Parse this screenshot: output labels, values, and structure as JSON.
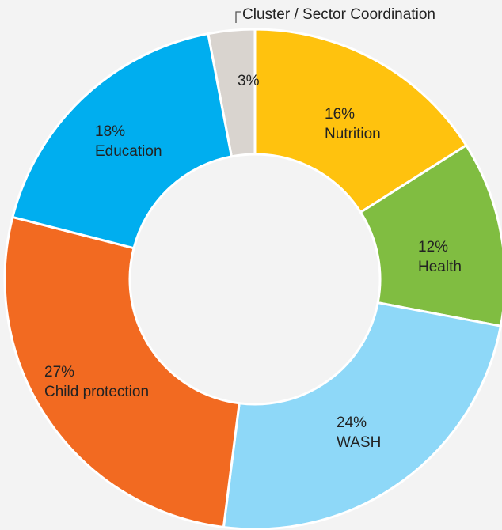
{
  "chart_data": {
    "type": "pie",
    "variant": "donut",
    "categories": [
      "Cluster / Sector Coordination",
      "Nutrition",
      "Health",
      "WASH",
      "Child protection",
      "Education"
    ],
    "values": [
      3,
      16,
      12,
      24,
      27,
      18
    ],
    "labels": [
      {
        "percent": "3%",
        "name": ""
      },
      {
        "percent": "16%",
        "name": "Nutrition"
      },
      {
        "percent": "12%",
        "name": "Health"
      },
      {
        "percent": "24%",
        "name": "WASH"
      },
      {
        "percent": "27%",
        "name": "Child protection"
      },
      {
        "percent": "18%",
        "name": "Education"
      }
    ],
    "callout": "Cluster / Sector Coordination",
    "colors": [
      "#d9d4cf",
      "#ffc20e",
      "#80bd41",
      "#8ed8f8",
      "#f26a21",
      "#00aeef"
    ],
    "title": ""
  }
}
